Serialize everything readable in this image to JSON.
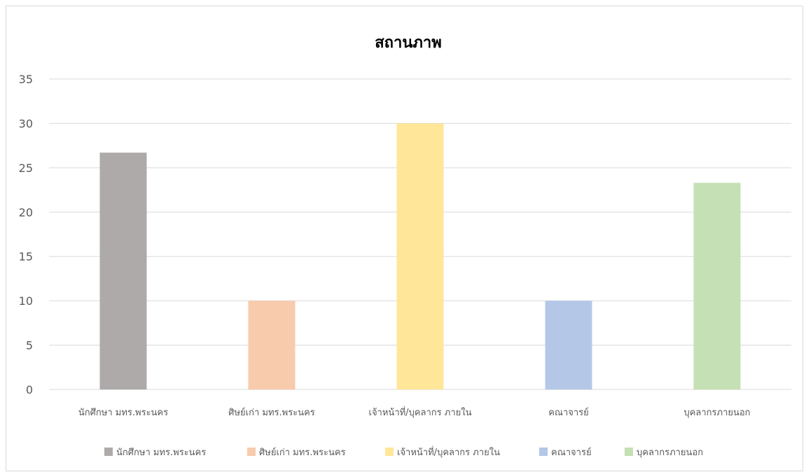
{
  "chart_data": {
    "type": "bar",
    "title": "สถานภาพ",
    "categories": [
      "นักศึกษา มทร.พระนคร",
      "ศิษย์เก่า มทร.พระนคร",
      "เจ้าหน้าที่/บุคลากร ภายใน",
      "คณาจารย์",
      "บุคลากรภายนอก"
    ],
    "values": [
      26.7,
      10,
      30,
      10,
      23.3
    ],
    "colors": [
      "#aeaaaa",
      "#f8cbad",
      "#ffe699",
      "#b4c7e7",
      "#c5e0b4"
    ],
    "ylim": [
      0,
      35
    ],
    "yticks": [
      0,
      5,
      10,
      15,
      20,
      25,
      30,
      35
    ],
    "grid": true,
    "legend_position": "bottom",
    "xlabel": "",
    "ylabel": ""
  }
}
